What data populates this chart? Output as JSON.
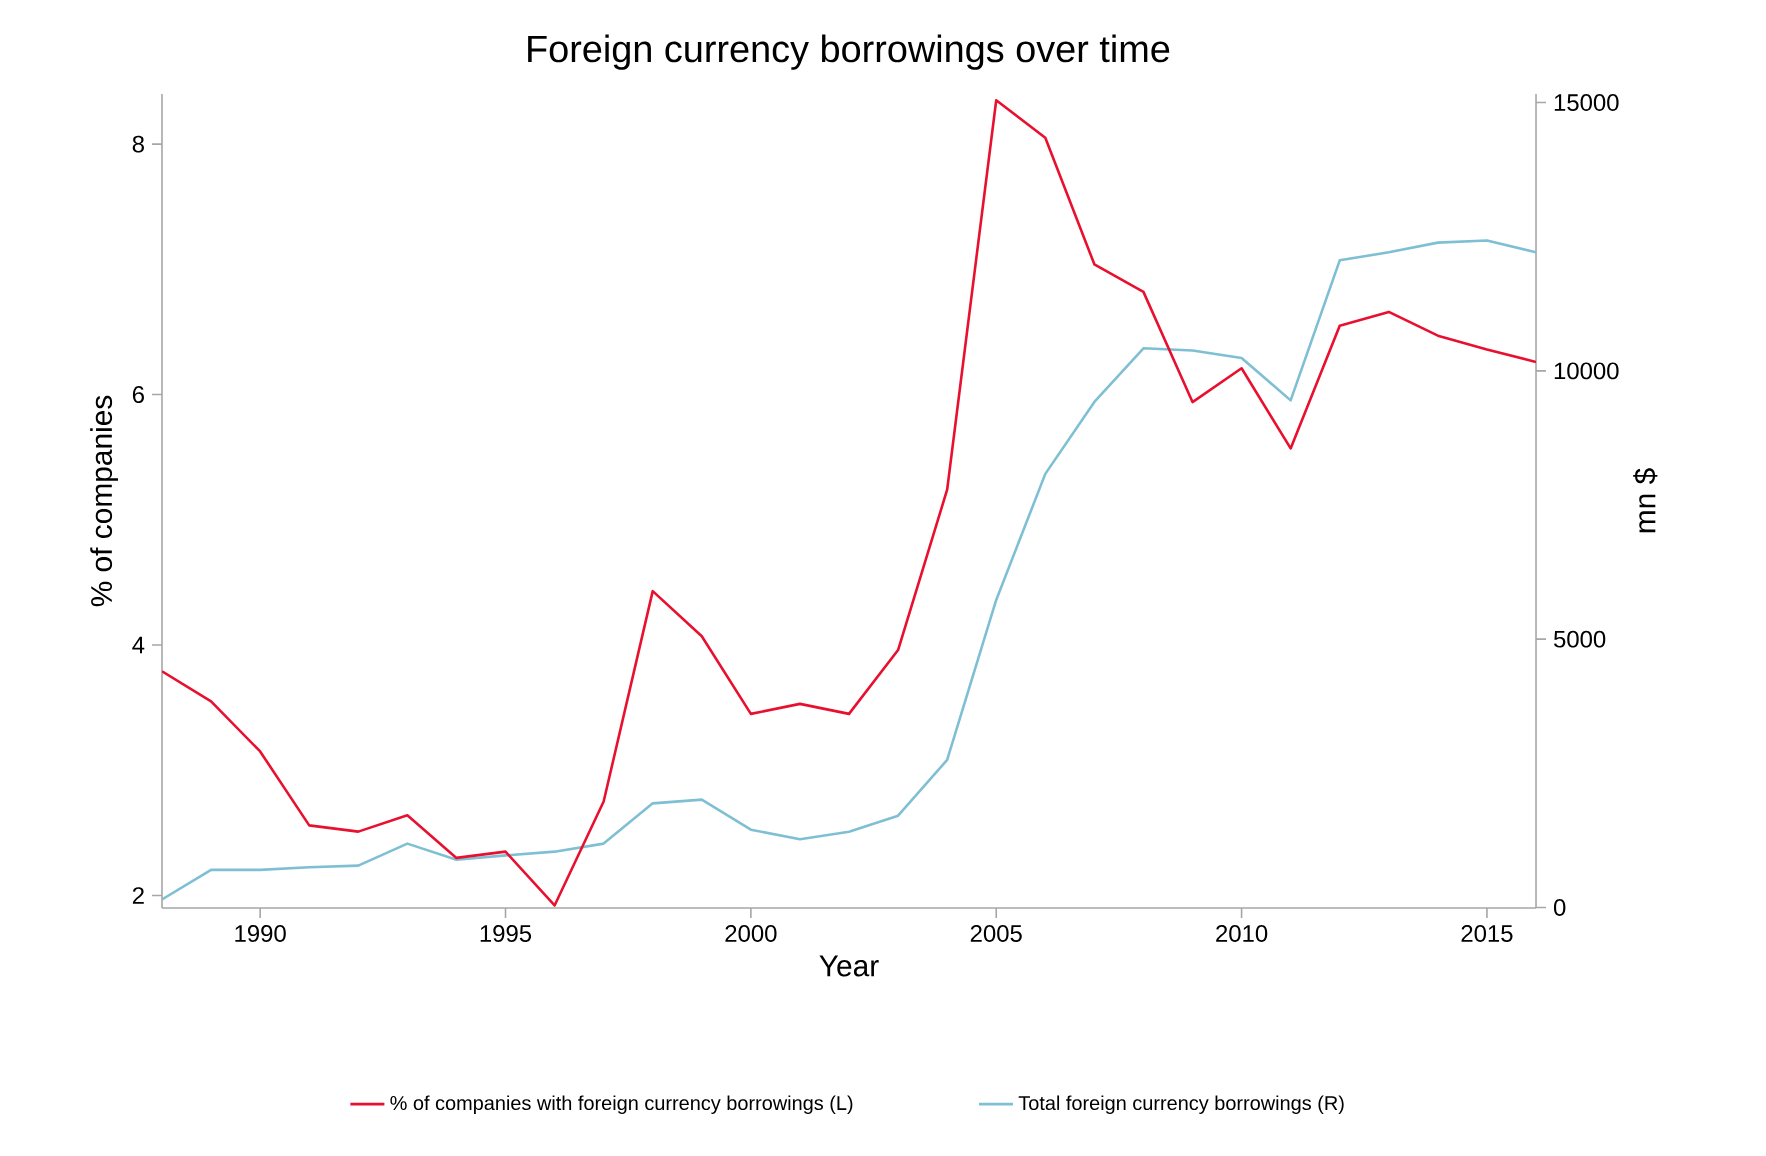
{
  "chart_data": {
    "type": "line",
    "title": "Foreign currency borrowings over time",
    "xlabel": "Year",
    "ylabel": "% of companies",
    "y2label": "mn $",
    "x": [
      1988,
      1989,
      1990,
      1991,
      1992,
      1993,
      1994,
      1995,
      1996,
      1997,
      1998,
      1999,
      2000,
      2001,
      2002,
      2003,
      2004,
      2005,
      2006,
      2007,
      2008,
      2009,
      2010,
      2011,
      2012,
      2013,
      2014,
      2015,
      2016
    ],
    "series": [
      {
        "name": "% of companies with foreign currency borrowings (L)",
        "color": "#e8102e",
        "values": [
          3.79,
          3.55,
          3.15,
          2.56,
          2.51,
          2.64,
          2.3,
          2.35,
          1.92,
          2.75,
          4.43,
          4.07,
          3.45,
          3.53,
          3.45,
          3.96,
          5.24,
          8.35,
          8.05,
          7.04,
          6.82,
          5.94,
          6.21,
          5.57,
          6.55,
          6.66,
          6.47,
          6.36,
          6.26
        ]
      },
      {
        "name": "Total foreign currency borrowings (R)",
        "color": "#7fbfd4",
        "axis": "y2",
        "values": [
          150,
          700,
          700,
          750,
          780,
          1190,
          890,
          970,
          1040,
          1190,
          1940,
          2010,
          1450,
          1270,
          1410,
          1710,
          2750,
          5730,
          8080,
          9420,
          10420,
          10380,
          10240,
          9450,
          12060,
          12210,
          12390,
          12430,
          12210
        ]
      }
    ],
    "xlim": [
      1988,
      2016
    ],
    "xticks": [
      1990,
      1995,
      2000,
      2005,
      2010,
      2015
    ],
    "ylim": [
      1.9,
      8.4
    ],
    "yticks": [
      2,
      4,
      6,
      8
    ],
    "y2lim": [
      -10,
      15160
    ],
    "y2ticks": [
      0,
      5000,
      10000,
      15000
    ],
    "grid": false,
    "legend": "bottom",
    "line_style": "solid"
  }
}
